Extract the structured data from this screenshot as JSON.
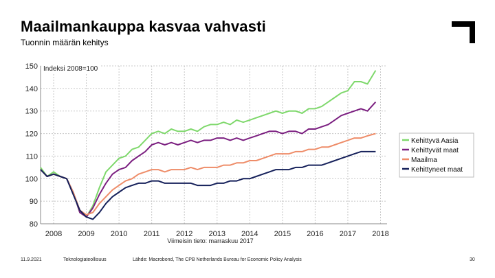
{
  "title": "Maailmankauppa kasvaa vahvasti",
  "subtitle": "Tuonnin määrän kehitys",
  "logo_icon": "corner-bracket-logo",
  "footer": {
    "date": "11.9.2021",
    "org": "Teknologiateollisuus",
    "source": "Lähde: Macrobond, The CPB Netherlands Bureau for Economic Policy Analysis",
    "page": "30"
  },
  "chart_data": {
    "type": "line",
    "index_label": "Indeksi 2008=100",
    "note": "Viimeisin tieto: marraskuu 2017",
    "xlim": [
      2007.6,
      2018.2
    ],
    "ylim": [
      80,
      150
    ],
    "x_ticks": [
      2008,
      2009,
      2010,
      2011,
      2012,
      2013,
      2014,
      2015,
      2016,
      2017,
      2018
    ],
    "y_ticks": [
      80,
      90,
      100,
      110,
      120,
      130,
      140,
      150
    ],
    "grid": true,
    "legend_position": "right",
    "series": [
      {
        "name": "Kehittyvä Aasia",
        "color": "#7ed86b",
        "points": [
          [
            2007.6,
            105
          ],
          [
            2007.8,
            101
          ],
          [
            2008.0,
            103
          ],
          [
            2008.2,
            101
          ],
          [
            2008.4,
            100
          ],
          [
            2008.6,
            94
          ],
          [
            2008.8,
            85
          ],
          [
            2009.0,
            83
          ],
          [
            2009.2,
            88
          ],
          [
            2009.4,
            96
          ],
          [
            2009.6,
            103
          ],
          [
            2009.8,
            106
          ],
          [
            2010.0,
            109
          ],
          [
            2010.2,
            110
          ],
          [
            2010.4,
            113
          ],
          [
            2010.6,
            114
          ],
          [
            2010.8,
            117
          ],
          [
            2011.0,
            120
          ],
          [
            2011.2,
            121
          ],
          [
            2011.4,
            120
          ],
          [
            2011.6,
            122
          ],
          [
            2011.8,
            121
          ],
          [
            2012.0,
            121
          ],
          [
            2012.2,
            122
          ],
          [
            2012.4,
            121
          ],
          [
            2012.6,
            123
          ],
          [
            2012.8,
            124
          ],
          [
            2013.0,
            124
          ],
          [
            2013.2,
            125
          ],
          [
            2013.4,
            124
          ],
          [
            2013.6,
            126
          ],
          [
            2013.8,
            125
          ],
          [
            2014.0,
            126
          ],
          [
            2014.2,
            127
          ],
          [
            2014.4,
            128
          ],
          [
            2014.6,
            129
          ],
          [
            2014.8,
            130
          ],
          [
            2015.0,
            129
          ],
          [
            2015.2,
            130
          ],
          [
            2015.4,
            130
          ],
          [
            2015.6,
            129
          ],
          [
            2015.8,
            131
          ],
          [
            2016.0,
            131
          ],
          [
            2016.2,
            132
          ],
          [
            2016.4,
            134
          ],
          [
            2016.6,
            136
          ],
          [
            2016.8,
            138
          ],
          [
            2017.0,
            139
          ],
          [
            2017.2,
            143
          ],
          [
            2017.4,
            143
          ],
          [
            2017.6,
            142
          ],
          [
            2017.85,
            148
          ]
        ]
      },
      {
        "name": "Kehittyvät maat",
        "color": "#7b1f80",
        "points": [
          [
            2007.6,
            104
          ],
          [
            2007.8,
            101
          ],
          [
            2008.0,
            102
          ],
          [
            2008.2,
            101
          ],
          [
            2008.4,
            100
          ],
          [
            2008.6,
            94
          ],
          [
            2008.8,
            85
          ],
          [
            2009.0,
            83
          ],
          [
            2009.2,
            87
          ],
          [
            2009.4,
            93
          ],
          [
            2009.6,
            98
          ],
          [
            2009.8,
            102
          ],
          [
            2010.0,
            104
          ],
          [
            2010.2,
            105
          ],
          [
            2010.4,
            108
          ],
          [
            2010.6,
            110
          ],
          [
            2010.8,
            112
          ],
          [
            2011.0,
            115
          ],
          [
            2011.2,
            116
          ],
          [
            2011.4,
            115
          ],
          [
            2011.6,
            116
          ],
          [
            2011.8,
            115
          ],
          [
            2012.0,
            116
          ],
          [
            2012.2,
            117
          ],
          [
            2012.4,
            116
          ],
          [
            2012.6,
            117
          ],
          [
            2012.8,
            117
          ],
          [
            2013.0,
            118
          ],
          [
            2013.2,
            118
          ],
          [
            2013.4,
            117
          ],
          [
            2013.6,
            118
          ],
          [
            2013.8,
            117
          ],
          [
            2014.0,
            118
          ],
          [
            2014.2,
            119
          ],
          [
            2014.4,
            120
          ],
          [
            2014.6,
            121
          ],
          [
            2014.8,
            121
          ],
          [
            2015.0,
            120
          ],
          [
            2015.2,
            121
          ],
          [
            2015.4,
            121
          ],
          [
            2015.6,
            120
          ],
          [
            2015.8,
            122
          ],
          [
            2016.0,
            122
          ],
          [
            2016.2,
            123
          ],
          [
            2016.4,
            124
          ],
          [
            2016.6,
            126
          ],
          [
            2016.8,
            128
          ],
          [
            2017.0,
            129
          ],
          [
            2017.2,
            130
          ],
          [
            2017.4,
            131
          ],
          [
            2017.6,
            130
          ],
          [
            2017.85,
            134
          ]
        ]
      },
      {
        "name": "Maailma",
        "color": "#ee8c68",
        "points": [
          [
            2007.6,
            104
          ],
          [
            2007.8,
            101
          ],
          [
            2008.0,
            102
          ],
          [
            2008.2,
            101
          ],
          [
            2008.4,
            100
          ],
          [
            2008.6,
            94
          ],
          [
            2008.8,
            86
          ],
          [
            2009.0,
            84
          ],
          [
            2009.2,
            85
          ],
          [
            2009.4,
            89
          ],
          [
            2009.6,
            92
          ],
          [
            2009.8,
            95
          ],
          [
            2010.0,
            97
          ],
          [
            2010.2,
            99
          ],
          [
            2010.4,
            100
          ],
          [
            2010.6,
            102
          ],
          [
            2010.8,
            103
          ],
          [
            2011.0,
            104
          ],
          [
            2011.2,
            104
          ],
          [
            2011.4,
            103
          ],
          [
            2011.6,
            104
          ],
          [
            2011.8,
            104
          ],
          [
            2012.0,
            104
          ],
          [
            2012.2,
            105
          ],
          [
            2012.4,
            104
          ],
          [
            2012.6,
            105
          ],
          [
            2012.8,
            105
          ],
          [
            2013.0,
            105
          ],
          [
            2013.2,
            106
          ],
          [
            2013.4,
            106
          ],
          [
            2013.6,
            107
          ],
          [
            2013.8,
            107
          ],
          [
            2014.0,
            108
          ],
          [
            2014.2,
            108
          ],
          [
            2014.4,
            109
          ],
          [
            2014.6,
            110
          ],
          [
            2014.8,
            111
          ],
          [
            2015.0,
            111
          ],
          [
            2015.2,
            111
          ],
          [
            2015.4,
            112
          ],
          [
            2015.6,
            112
          ],
          [
            2015.8,
            113
          ],
          [
            2016.0,
            113
          ],
          [
            2016.2,
            114
          ],
          [
            2016.4,
            114
          ],
          [
            2016.6,
            115
          ],
          [
            2016.8,
            116
          ],
          [
            2017.0,
            117
          ],
          [
            2017.2,
            118
          ],
          [
            2017.4,
            118
          ],
          [
            2017.6,
            119
          ],
          [
            2017.85,
            120
          ]
        ]
      },
      {
        "name": "Kehittyneet maat",
        "color": "#15205a",
        "points": [
          [
            2007.6,
            104
          ],
          [
            2007.8,
            101
          ],
          [
            2008.0,
            102
          ],
          [
            2008.2,
            101
          ],
          [
            2008.4,
            100
          ],
          [
            2008.6,
            93
          ],
          [
            2008.8,
            86
          ],
          [
            2009.0,
            83
          ],
          [
            2009.2,
            82
          ],
          [
            2009.4,
            85
          ],
          [
            2009.6,
            89
          ],
          [
            2009.8,
            92
          ],
          [
            2010.0,
            94
          ],
          [
            2010.2,
            96
          ],
          [
            2010.4,
            97
          ],
          [
            2010.6,
            98
          ],
          [
            2010.8,
            98
          ],
          [
            2011.0,
            99
          ],
          [
            2011.2,
            99
          ],
          [
            2011.4,
            98
          ],
          [
            2011.6,
            98
          ],
          [
            2011.8,
            98
          ],
          [
            2012.0,
            98
          ],
          [
            2012.2,
            98
          ],
          [
            2012.4,
            97
          ],
          [
            2012.6,
            97
          ],
          [
            2012.8,
            97
          ],
          [
            2013.0,
            98
          ],
          [
            2013.2,
            98
          ],
          [
            2013.4,
            99
          ],
          [
            2013.6,
            99
          ],
          [
            2013.8,
            100
          ],
          [
            2014.0,
            100
          ],
          [
            2014.2,
            101
          ],
          [
            2014.4,
            102
          ],
          [
            2014.6,
            103
          ],
          [
            2014.8,
            104
          ],
          [
            2015.0,
            104
          ],
          [
            2015.2,
            104
          ],
          [
            2015.4,
            105
          ],
          [
            2015.6,
            105
          ],
          [
            2015.8,
            106
          ],
          [
            2016.0,
            106
          ],
          [
            2016.2,
            106
          ],
          [
            2016.4,
            107
          ],
          [
            2016.6,
            108
          ],
          [
            2016.8,
            109
          ],
          [
            2017.0,
            110
          ],
          [
            2017.2,
            111
          ],
          [
            2017.4,
            112
          ],
          [
            2017.6,
            112
          ],
          [
            2017.85,
            112
          ]
        ]
      }
    ]
  }
}
